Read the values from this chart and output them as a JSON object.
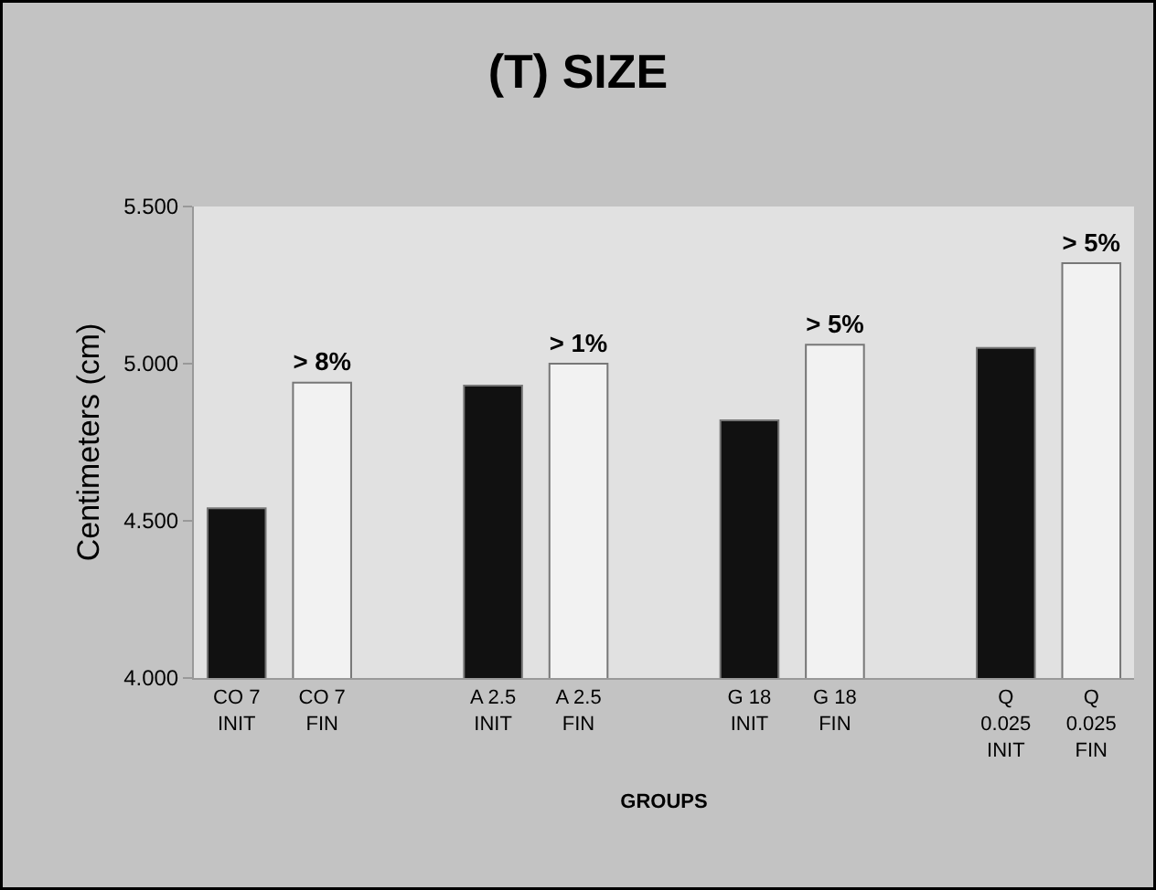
{
  "chart_data": {
    "type": "bar",
    "title": "(T) SIZE",
    "xlabel": "GROUPS",
    "ylabel": "Centimeters (cm)",
    "categories": [
      "CO 7\nINIT",
      "CO 7\nFIN",
      null,
      "A 2.5\nINIT",
      "A 2.5\nFIN",
      null,
      "G 18\nINIT",
      "G 18\nFIN",
      null,
      "Q\n0.025\nINIT",
      "Q\n0.025\nFIN"
    ],
    "values": [
      4.54,
      4.94,
      null,
      4.93,
      5.0,
      null,
      4.82,
      5.06,
      null,
      5.05,
      5.32
    ],
    "colors": [
      "#111111",
      "#f2f2f2",
      "#ffffff",
      "#111111",
      "#f2f2f2",
      "#ffffff",
      "#111111",
      "#f2f2f2",
      "#ffffff",
      "#111111",
      "#f2f2f2"
    ],
    "value_labels": [
      null,
      "> 8%",
      null,
      null,
      "> 1%",
      null,
      null,
      "> 5%",
      null,
      null,
      "> 5%"
    ],
    "ylim": [
      4.0,
      5.5
    ],
    "yticks": [
      {
        "value": 4.0,
        "label": "4.000"
      },
      {
        "value": 4.5,
        "label": "4.500"
      },
      {
        "value": 5.0,
        "label": "5.000"
      },
      {
        "value": 5.5,
        "label": "5.500"
      }
    ]
  }
}
